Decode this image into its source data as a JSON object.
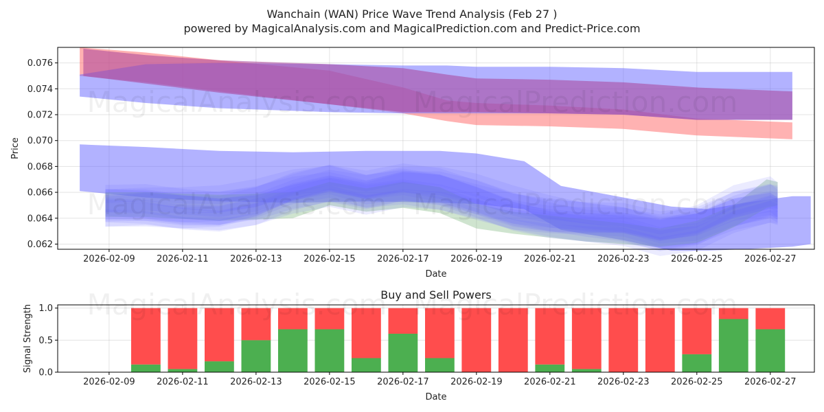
{
  "title_line1": "Wanchain (WAN) Price Wave Trend Analysis (Feb 27 )",
  "title_line2": "powered by MagicalAnalysis.com and MagicalPrediction.com and Predict-Price.com",
  "watermarks": [
    "MagicalAnalysis.com",
    "MagicalPrediction.com"
  ],
  "colors": {
    "red_band": "#ff6666",
    "blue_band": "#6666ff",
    "green_band": "#88bb88",
    "buy": "#4caf50",
    "sell": "#ff4d4d"
  },
  "chart_data": [
    {
      "type": "area",
      "title": "",
      "xlabel": "Date",
      "ylabel": "Price",
      "xlim": [
        "2026-02-07.6",
        "2026-02-28.2"
      ],
      "ylim": [
        0.0616,
        0.0772
      ],
      "xticks": [
        "2026-02-09",
        "2026-02-11",
        "2026-02-13",
        "2026-02-15",
        "2026-02-17",
        "2026-02-19",
        "2026-02-21",
        "2026-02-23",
        "2026-02-25",
        "2026-02-27"
      ],
      "yticks": [
        "0.062",
        "0.064",
        "0.066",
        "0.068",
        "0.070",
        "0.072",
        "0.074",
        "0.076"
      ],
      "series": [
        {
          "name": "red wave band",
          "color": "#ff6666",
          "x": [
            8.2,
            10,
            12,
            15,
            17,
            18.2,
            19,
            21,
            23,
            25,
            27.6
          ],
          "upper": [
            0.0772,
            0.0768,
            0.0762,
            0.0754,
            0.0741,
            0.0731,
            0.0729,
            0.0727,
            0.0724,
            0.0717,
            0.0714
          ],
          "lower": [
            0.075,
            0.0745,
            0.0738,
            0.0728,
            0.0721,
            0.0715,
            0.0712,
            0.0711,
            0.0709,
            0.0704,
            0.0701
          ]
        },
        {
          "name": "upper blue band",
          "color": "#6666ff",
          "x": [
            8.2,
            10,
            12,
            15,
            17,
            18.2,
            19,
            21,
            23,
            25,
            27.6
          ],
          "upper": [
            0.0751,
            0.0759,
            0.076,
            0.0759,
            0.0758,
            0.0758,
            0.0757,
            0.0757,
            0.0756,
            0.0753,
            0.0753
          ],
          "lower": [
            0.0734,
            0.0729,
            0.0725,
            0.0722,
            0.0721,
            0.0721,
            0.0721,
            0.0721,
            0.072,
            0.0716,
            0.0716
          ]
        },
        {
          "name": "purple overlap band",
          "color": "#aa4499",
          "x": [
            8.3,
            10,
            12,
            15,
            17,
            18.2,
            19,
            21,
            23,
            25,
            27.6
          ],
          "upper": [
            0.0771,
            0.0766,
            0.0762,
            0.0759,
            0.0756,
            0.0751,
            0.0748,
            0.0747,
            0.0745,
            0.0741,
            0.0738
          ],
          "lower": [
            0.075,
            0.0744,
            0.0737,
            0.0728,
            0.0722,
            0.0722,
            0.0722,
            0.0721,
            0.072,
            0.0716,
            0.0716
          ]
        },
        {
          "name": "wide blue band",
          "color": "#6666ff",
          "x": [
            8.2,
            10,
            12,
            14,
            16,
            18,
            19,
            20.3,
            21.3,
            23,
            24.3,
            25.3,
            26.3,
            27.6,
            28.1
          ],
          "upper": [
            0.0697,
            0.0695,
            0.0692,
            0.0691,
            0.0692,
            0.0692,
            0.069,
            0.0684,
            0.0665,
            0.0656,
            0.0649,
            0.0647,
            0.0652,
            0.0657,
            0.0657
          ],
          "lower": [
            0.0661,
            0.0656,
            0.0653,
            0.0652,
            0.0653,
            0.0652,
            0.0651,
            0.0647,
            0.0631,
            0.0623,
            0.0615,
            0.0615,
            0.0616,
            0.0618,
            0.062
          ]
        },
        {
          "name": "green wave band",
          "color": "#88bb88",
          "x": [
            8.9,
            10,
            12,
            14,
            15,
            16,
            17,
            18,
            19,
            20,
            21,
            22,
            23,
            24,
            25,
            26,
            26.9,
            27.2
          ],
          "upper": [
            0.066,
            0.066,
            0.0658,
            0.066,
            0.0668,
            0.0663,
            0.0668,
            0.0664,
            0.0651,
            0.0645,
            0.0642,
            0.0639,
            0.0636,
            0.0632,
            0.0638,
            0.065,
            0.067,
            0.0668
          ],
          "lower": [
            0.0641,
            0.0641,
            0.0638,
            0.064,
            0.065,
            0.0645,
            0.0648,
            0.0644,
            0.0632,
            0.0628,
            0.0625,
            0.0622,
            0.062,
            0.0618,
            0.0621,
            0.0633,
            0.0648,
            0.065
          ]
        },
        {
          "name": "blue wave bands",
          "color": "#6666ff",
          "x": [
            8.9,
            10,
            11,
            12,
            13,
            14,
            15,
            16,
            17,
            18,
            19,
            20,
            21,
            22,
            23,
            24,
            25,
            26,
            27,
            27.2
          ],
          "mid": [
            0.0649,
            0.0649,
            0.0646,
            0.0645,
            0.065,
            0.066,
            0.0666,
            0.066,
            0.0665,
            0.0662,
            0.0654,
            0.0645,
            0.064,
            0.0637,
            0.0635,
            0.0628,
            0.0632,
            0.0645,
            0.0652,
            0.065
          ]
        }
      ]
    },
    {
      "type": "bar",
      "title": "Buy and Sell Powers",
      "xlabel": "Date",
      "ylabel": "Signal Strength",
      "ylim": [
        0,
        1.05
      ],
      "yticks": [
        "0.0",
        "0.5",
        "1.0"
      ],
      "xticks": [
        "2026-02-09",
        "2026-02-11",
        "2026-02-13",
        "2026-02-15",
        "2026-02-17",
        "2026-02-19",
        "2026-02-21",
        "2026-02-23",
        "2026-02-25",
        "2026-02-27"
      ],
      "categories": [
        "2026-02-10",
        "2026-02-11",
        "2026-02-12",
        "2026-02-13",
        "2026-02-14",
        "2026-02-15",
        "2026-02-16",
        "2026-02-17",
        "2026-02-18",
        "2026-02-19",
        "2026-02-20",
        "2026-02-21",
        "2026-02-22",
        "2026-02-23",
        "2026-02-24",
        "2026-02-25",
        "2026-02-26",
        "2026-02-27"
      ],
      "series": [
        {
          "name": "Buy",
          "color": "#4caf50",
          "values": [
            0.12,
            0.05,
            0.17,
            0.5,
            0.67,
            0.67,
            0.22,
            0.6,
            0.22,
            0,
            0,
            0.12,
            0.05,
            0,
            0,
            0.28,
            0.83,
            0.67
          ]
        },
        {
          "name": "Sell",
          "color": "#ff4d4d",
          "values": [
            0.88,
            0.95,
            0.83,
            0.5,
            0.33,
            0.33,
            0.78,
            0.4,
            0.78,
            1,
            1,
            0.88,
            0.95,
            1,
            1,
            0.72,
            0.17,
            0.33
          ]
        }
      ]
    }
  ]
}
